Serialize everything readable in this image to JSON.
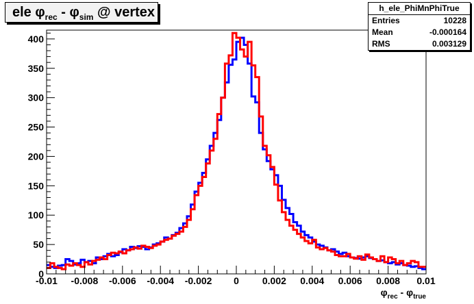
{
  "title": {
    "prefix": "ele ",
    "phi1": "φ",
    "sub1": "rec",
    "mid": " - ",
    "phi2": "φ",
    "sub2": "sim",
    "suffix": " @ vertex"
  },
  "stats": {
    "name": "h_ele_PhiMnPhiTrue",
    "rows": [
      {
        "label": "Entries",
        "value": "10228"
      },
      {
        "label": "Mean",
        "value": "-0.000164"
      },
      {
        "label": "RMS",
        "value": "0.003129"
      }
    ]
  },
  "xaxis_title": {
    "phi1": "φ",
    "sub1": "rec",
    "mid": " - ",
    "phi2": "φ",
    "sub2": "true"
  },
  "chart_data": {
    "type": "line",
    "title": "ele φrec - φsim @ vertex",
    "xlabel": "φrec - φtrue",
    "ylabel": "",
    "xlim": [
      -0.01,
      0.01
    ],
    "ylim": [
      0,
      415
    ],
    "grid": false,
    "step": true,
    "bin_edges_x": [
      -0.01,
      0.01
    ],
    "bins": 100,
    "x_ticks": [
      {
        "v": -0.01,
        "label": "-0.01"
      },
      {
        "v": -0.008,
        "label": "-0.008"
      },
      {
        "v": -0.006,
        "label": "-0.006"
      },
      {
        "v": -0.004,
        "label": "-0.004"
      },
      {
        "v": -0.002,
        "label": "-0.002"
      },
      {
        "v": 0,
        "label": "0"
      },
      {
        "v": 0.002,
        "label": "0.002"
      },
      {
        "v": 0.004,
        "label": "0.004"
      },
      {
        "v": 0.006,
        "label": "0.006"
      },
      {
        "v": 0.008,
        "label": "0.008"
      },
      {
        "v": 0.01,
        "label": "0.01"
      }
    ],
    "y_ticks": [
      0,
      50,
      100,
      150,
      200,
      250,
      300,
      350,
      400
    ],
    "series": [
      {
        "color": "#0000ff",
        "values": [
          15,
          12,
          10,
          14,
          15,
          25,
          22,
          16,
          18,
          24,
          20,
          22,
          18,
          28,
          25,
          30,
          34,
          30,
          32,
          37,
          42,
          40,
          46,
          44,
          47,
          46,
          42,
          45,
          50,
          52,
          55,
          62,
          60,
          66,
          70,
          78,
          86,
          98,
          118,
          140,
          155,
          172,
          195,
          218,
          240,
          262,
          300,
          326,
          356,
          365,
          395,
          402,
          390,
          358,
          302,
          292,
          240,
          212,
          192,
          178,
          168,
          150,
          126,
          112,
          102,
          88,
          82,
          72,
          66,
          62,
          55,
          50,
          48,
          45,
          40,
          42,
          38,
          34,
          36,
          30,
          28,
          27,
          26,
          28,
          30,
          27,
          25,
          22,
          23,
          20,
          18,
          20,
          16,
          18,
          15,
          14,
          12,
          13,
          10,
          8
        ]
      },
      {
        "color": "#ff0000",
        "values": [
          10,
          18,
          12,
          10,
          8,
          16,
          14,
          18,
          15,
          12,
          20,
          16,
          22,
          24,
          28,
          25,
          32,
          36,
          35,
          38,
          35,
          40,
          42,
          45,
          43,
          48,
          46,
          44,
          48,
          50,
          55,
          58,
          60,
          65,
          68,
          72,
          80,
          92,
          110,
          134,
          150,
          165,
          188,
          210,
          230,
          272,
          300,
          358,
          372,
          410,
          402,
          382,
          370,
          395,
          355,
          335,
          268,
          218,
          202,
          182,
          152,
          125,
          105,
          92,
          82,
          75,
          68,
          62,
          56,
          52,
          58,
          45,
          42,
          44,
          40,
          38,
          32,
          30,
          30,
          34,
          28,
          26,
          30,
          24,
          33,
          28,
          25,
          22,
          30,
          20,
          28,
          25,
          18,
          22,
          15,
          18,
          22,
          20,
          12,
          12
        ]
      }
    ]
  }
}
